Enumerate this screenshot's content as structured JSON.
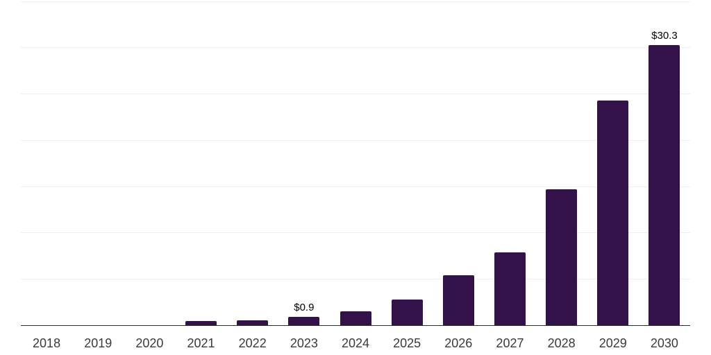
{
  "chart_data": {
    "type": "bar",
    "title": "",
    "xlabel": "",
    "ylabel": "",
    "categories": [
      "2018",
      "2019",
      "2020",
      "2021",
      "2022",
      "2023",
      "2024",
      "2025",
      "2026",
      "2027",
      "2028",
      "2029",
      "2030"
    ],
    "values": [
      0,
      0,
      0,
      0.5,
      0.6,
      0.9,
      1.5,
      2.8,
      5.4,
      7.9,
      14.7,
      24.3,
      30.3
    ],
    "data_labels": [
      "",
      "",
      "",
      "",
      "",
      "$0.9",
      "",
      "",
      "",
      "",
      "",
      "",
      "$30.3"
    ],
    "ylim": [
      0,
      35
    ],
    "gridline_interval": 5,
    "grid": "horizontal",
    "legend": "none",
    "bar_color": "#33124a",
    "gridline_color": "#efefef",
    "axis_line_color": "#2b2b2b",
    "x_label_color": "#3a3a3a",
    "value_label_color": "#000000"
  }
}
